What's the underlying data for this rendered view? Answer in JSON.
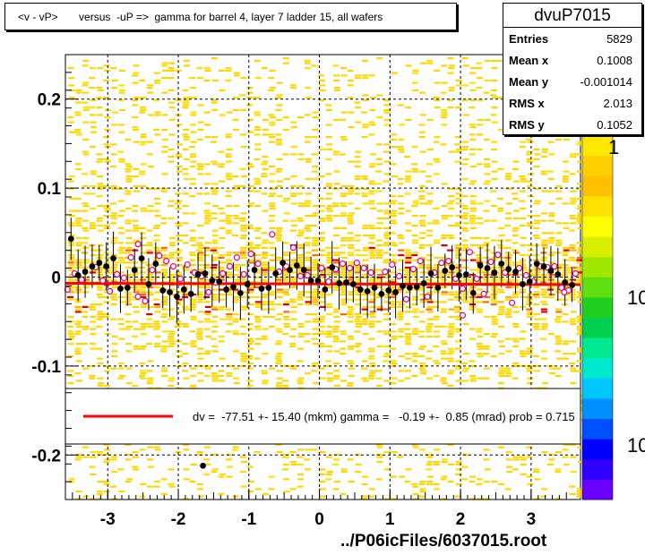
{
  "title": "<v - vP>       versus  -uP =>  gamma for barrel 4, layer 7 ladder 15, all wafers",
  "stats": {
    "name": "dvuP7015",
    "rows": [
      {
        "label": "Entries",
        "value": "5829"
      },
      {
        "label": "Mean x",
        "value": "0.1008"
      },
      {
        "label": "Mean y",
        "value": "-0.001014"
      },
      {
        "label": "RMS x",
        "value": "2.013"
      },
      {
        "label": "RMS y",
        "value": "0.1052"
      }
    ]
  },
  "fit_legend": "dv =  -77.51 +- 15.40 (mkm) gamma =   -0.19 +-  0.85 (mrad) prob = 0.715",
  "footer": "../P06icFiles/6037015.root",
  "colors": {
    "fit_line": "#ff0000",
    "hist_cells": "#ffd700",
    "open_marker": "#e6007e",
    "points": "#000000"
  },
  "chart_data": {
    "type": "scatter",
    "xlim": [
      -3.6,
      3.7
    ],
    "ylim": [
      -0.25,
      0.25
    ],
    "x_ticks": [
      -3,
      -2,
      -1,
      0,
      1,
      2,
      3
    ],
    "y_ticks": [
      0.2,
      0.1,
      0,
      -0.1,
      -0.2
    ],
    "x_tick_labels": [
      "-3",
      "-2",
      "-1",
      "0",
      "1",
      "2",
      "3"
    ],
    "y_tick_labels": [
      "0.2",
      "0.1",
      "0",
      "-0.1",
      "-0.2"
    ],
    "z_tick_labels": [
      "1",
      "10",
      "10"
    ],
    "grid": true,
    "fit_line": {
      "y0": -0.0077,
      "slope": -0.00019
    },
    "series": [
      {
        "points": [
          [
            -3.52,
            0.043
          ],
          [
            -3.42,
            0.002
          ],
          [
            -3.32,
            0.006
          ],
          [
            -3.22,
            0.012
          ],
          [
            -3.12,
            0.016
          ],
          [
            -3.02,
            0.012
          ],
          [
            -2.92,
            0.021
          ],
          [
            -2.82,
            -0.013
          ],
          [
            -2.72,
            -0.012
          ],
          [
            -2.62,
            0.008
          ],
          [
            -2.52,
            0.021
          ],
          [
            -2.42,
            -0.008
          ],
          [
            -2.32,
            0.015
          ],
          [
            -2.22,
            -0.015
          ],
          [
            -2.12,
            -0.017
          ],
          [
            -2.02,
            -0.022
          ],
          [
            -1.92,
            -0.014
          ],
          [
            -1.82,
            -0.019
          ],
          [
            -1.72,
            0.003
          ],
          [
            -1.62,
            0.004
          ],
          [
            -1.52,
            -0.004
          ],
          [
            -1.42,
            -0.005
          ],
          [
            -1.32,
            -0.014
          ],
          [
            -1.22,
            -0.011
          ],
          [
            -1.12,
            -0.018
          ],
          [
            -1.02,
            -0.008
          ],
          [
            -0.92,
            0.008
          ],
          [
            -0.82,
            -0.013
          ],
          [
            -0.72,
            -0.012
          ],
          [
            -0.62,
            0.004
          ],
          [
            -0.52,
            0.016
          ],
          [
            -0.42,
            0.008
          ],
          [
            -0.32,
            0.013
          ],
          [
            -0.22,
            0.008
          ],
          [
            -0.12,
            -0.004
          ],
          [
            -0.02,
            -0.004
          ],
          [
            0.08,
            -0.014
          ],
          [
            0.18,
            0.011
          ],
          [
            0.28,
            -0.007
          ],
          [
            0.38,
            -0.006
          ],
          [
            0.48,
            -0.008
          ],
          [
            0.58,
            -0.014
          ],
          [
            0.68,
            -0.016
          ],
          [
            0.78,
            -0.012
          ],
          [
            0.88,
            -0.019
          ],
          [
            0.98,
            -0.015
          ],
          [
            1.08,
            -0.017
          ],
          [
            1.18,
            -0.01
          ],
          [
            1.28,
            -0.012
          ],
          [
            1.38,
            -0.011
          ],
          [
            1.48,
            -0.007
          ],
          [
            1.58,
            0.004
          ],
          [
            1.68,
            -0.012
          ],
          [
            1.78,
            0.007
          ],
          [
            1.88,
            0.011
          ],
          [
            1.98,
            0.002
          ],
          [
            2.08,
            0.003
          ],
          [
            2.18,
            -0.018
          ],
          [
            2.28,
            0.013
          ],
          [
            2.38,
            0.01
          ],
          [
            2.48,
            0.005
          ],
          [
            2.58,
            0.015
          ],
          [
            2.68,
            0.009
          ],
          [
            2.78,
            0.006
          ],
          [
            2.88,
            -0.008
          ],
          [
            2.98,
            -0.005
          ],
          [
            3.08,
            0.015
          ],
          [
            3.18,
            0.012
          ],
          [
            3.28,
            0.007
          ],
          [
            3.38,
            0.003
          ],
          [
            3.48,
            -0.006
          ],
          [
            3.58,
            -0.009
          ],
          [
            -1.65,
            -0.212
          ]
        ]
      },
      {
        "points": [
          [
            -3.47,
            0.004
          ],
          [
            -3.37,
            -0.003
          ],
          [
            -3.17,
            0.011
          ],
          [
            -3.07,
            -0.004
          ],
          [
            -2.87,
            0.003
          ],
          [
            -2.77,
            -0.001
          ],
          [
            -2.67,
            0.022
          ],
          [
            -2.57,
            0.037
          ],
          [
            -2.47,
            -0.027
          ],
          [
            -2.37,
            0.008
          ],
          [
            -2.27,
            0.024
          ],
          [
            -2.17,
            0.018
          ],
          [
            -2.07,
            0.012
          ],
          [
            -1.97,
            -0.002
          ],
          [
            -1.87,
            0.014
          ],
          [
            -1.77,
            0.005
          ],
          [
            -1.67,
            0.001
          ],
          [
            -1.57,
            -0.017
          ],
          [
            -1.47,
            -0.006
          ],
          [
            -1.37,
            0.004
          ],
          [
            -1.27,
            0.012
          ],
          [
            -1.17,
            0.022
          ],
          [
            -1.07,
            0.003
          ],
          [
            -0.97,
            0.026
          ],
          [
            -0.87,
            0.015
          ],
          [
            -0.67,
            0.048
          ],
          [
            -0.57,
            0.006
          ],
          [
            -0.47,
            0.012
          ],
          [
            -0.37,
            0.033
          ],
          [
            -0.27,
            0.001
          ],
          [
            -0.17,
            0.002
          ],
          [
            0.03,
            0.01
          ],
          [
            0.13,
            -0.005
          ],
          [
            0.23,
            0.009
          ],
          [
            0.33,
            0.015
          ],
          [
            0.43,
            0.01
          ],
          [
            0.53,
            0.016
          ],
          [
            0.63,
            0.01
          ],
          [
            0.73,
            0.005
          ],
          [
            0.93,
            0.006
          ],
          [
            1.03,
            0.014
          ],
          [
            1.13,
            0.001
          ],
          [
            1.23,
            -0.025
          ],
          [
            1.33,
            0.009
          ],
          [
            1.43,
            0.018
          ],
          [
            1.53,
            -0.022
          ],
          [
            1.63,
            0.005
          ],
          [
            1.73,
            0.016
          ],
          [
            1.83,
            0.018
          ],
          [
            1.93,
            -0.002
          ],
          [
            2.03,
            -0.013
          ],
          [
            2.13,
            0.028
          ],
          [
            2.23,
            -0.002
          ],
          [
            2.33,
            -0.019
          ],
          [
            2.43,
            0.017
          ],
          [
            2.53,
            0.025
          ],
          [
            2.63,
            0.005
          ],
          [
            2.73,
            -0.029
          ],
          [
            2.83,
            0.01
          ],
          [
            2.93,
            0.002
          ],
          [
            3.03,
            -0.005
          ],
          [
            3.13,
            0.012
          ],
          [
            3.23,
            0.011
          ],
          [
            3.33,
            0.012
          ],
          [
            3.43,
            -0.012
          ],
          [
            3.53,
            -0.015
          ],
          [
            3.63,
            0.004
          ],
          [
            -3.57,
            -0.014
          ],
          [
            -2.97,
            -0.016
          ],
          [
            3.47,
            -0.017
          ],
          [
            2.03,
            -0.043
          ],
          [
            -2.57,
            -0.022
          ]
        ]
      }
    ]
  }
}
